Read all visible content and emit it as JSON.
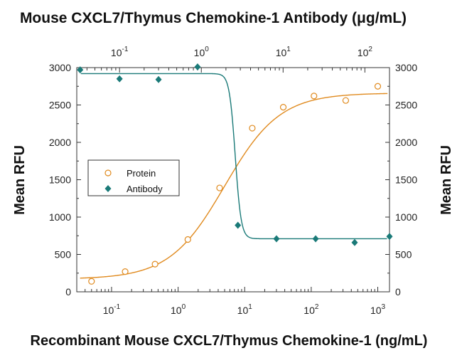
{
  "chart_data": {
    "type": "scatter",
    "title": "Mouse CXCL7/Thymus Chemokine-1 Antibody (μg/mL)",
    "xlabel": "Recombinant Mouse CXCL7/Thymus Chemokine-1 (ng/mL)",
    "ylabel_left": "Mean RFU",
    "ylabel_right": "Mean RFU",
    "x_scale": "log",
    "xlim": [
      0.03,
      1500
    ],
    "ylim": [
      0,
      3000
    ],
    "y_ticks": [
      "0",
      "500",
      "1000",
      "1500",
      "2000",
      "2500",
      "3000"
    ],
    "x_bottom_ticks": [
      {
        "base": "10",
        "exp": "-1",
        "value": 0.1
      },
      {
        "base": "10",
        "exp": "0",
        "value": 1
      },
      {
        "base": "10",
        "exp": "1",
        "value": 10
      },
      {
        "base": "10",
        "exp": "2",
        "value": 100
      },
      {
        "base": "10",
        "exp": "3",
        "value": 1000
      }
    ],
    "x_top_ticks": [
      {
        "base": "10",
        "exp": "-1",
        "value": 0.1
      },
      {
        "base": "10",
        "exp": "0",
        "value": 1
      },
      {
        "base": "10",
        "exp": "1",
        "value": 10
      },
      {
        "base": "10",
        "exp": "2",
        "value": 100
      }
    ],
    "x_top_scale": {
      "type": "log",
      "xlim": [
        0.03,
        200
      ]
    },
    "series": [
      {
        "name": "Protein",
        "color": "#e08a1e",
        "marker": "open-circle",
        "axis": "bottom",
        "x": [
          0.05,
          0.16,
          0.45,
          1.4,
          4.2,
          13,
          38,
          110,
          330,
          1000
        ],
        "y": [
          140,
          270,
          370,
          700,
          1390,
          2190,
          2470,
          2620,
          2560,
          2750
        ],
        "fit": {
          "bottom": 170,
          "top": 2660,
          "ec50": 5.0,
          "hill": 1.05
        }
      },
      {
        "name": "Antibody",
        "color": "#1a7a78",
        "marker": "filled-diamond",
        "axis": "top",
        "x": [
          0.033,
          0.1,
          0.3,
          0.9,
          2.8,
          8.3,
          25,
          75,
          200
        ],
        "y": [
          2970,
          2850,
          2840,
          3010,
          890,
          710,
          710,
          660,
          740
        ],
        "fit": {
          "bottom": 710,
          "top": 2920,
          "ec50": 2.6,
          "hill": 12
        }
      }
    ],
    "legend": {
      "placement": "left-middle",
      "entries": [
        "Protein",
        "Antibody"
      ]
    },
    "grid": false
  }
}
